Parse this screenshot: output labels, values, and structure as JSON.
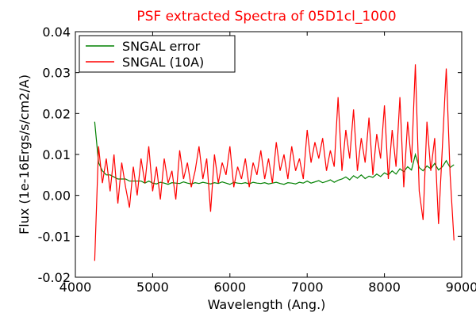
{
  "chart_data": {
    "type": "line",
    "title": "PSF extracted Spectra of 05D1cl_1000",
    "x_label": "Wavelength (Ang.)",
    "y_label": "Flux (1e-16Ergs/s/cm2/A)",
    "xlim": [
      4000,
      9000
    ],
    "ylim": [
      -0.02,
      0.04
    ],
    "xticks": [
      4000,
      5000,
      6000,
      7000,
      8000,
      9000
    ],
    "yticks": [
      -0.02,
      -0.01,
      {
        "value": 0,
        "label": "0.00"
      },
      0.01,
      0.02,
      0.03,
      0.04
    ],
    "legend": "upper left",
    "x": [
      4250,
      4300,
      4350,
      4400,
      4450,
      4500,
      4550,
      4600,
      4650,
      4700,
      4750,
      4800,
      4850,
      4900,
      4950,
      5000,
      5050,
      5100,
      5150,
      5200,
      5250,
      5300,
      5350,
      5400,
      5450,
      5500,
      5550,
      5600,
      5650,
      5700,
      5750,
      5800,
      5850,
      5900,
      5950,
      6000,
      6050,
      6100,
      6150,
      6200,
      6250,
      6300,
      6350,
      6400,
      6450,
      6500,
      6550,
      6600,
      6650,
      6700,
      6750,
      6800,
      6850,
      6900,
      6950,
      7000,
      7050,
      7100,
      7150,
      7200,
      7250,
      7300,
      7350,
      7400,
      7450,
      7500,
      7550,
      7600,
      7650,
      7700,
      7750,
      7800,
      7850,
      7900,
      7950,
      8000,
      8050,
      8100,
      8150,
      8200,
      8250,
      8300,
      8350,
      8400,
      8450,
      8500,
      8550,
      8600,
      8650,
      8700,
      8750,
      8800,
      8850,
      8900
    ],
    "series": [
      {
        "name": "SNGAL error",
        "color": "#008000",
        "values": [
          0.018,
          0.008,
          0.006,
          0.005,
          0.005,
          0.0045,
          0.004,
          0.004,
          0.004,
          0.0035,
          0.0035,
          0.0035,
          0.0035,
          0.003,
          0.0035,
          0.003,
          0.0028,
          0.0032,
          0.003,
          0.0027,
          0.0031,
          0.003,
          0.0029,
          0.0033,
          0.003,
          0.0028,
          0.0031,
          0.0029,
          0.0032,
          0.003,
          0.0028,
          0.0031,
          0.0029,
          0.0033,
          0.003,
          0.0027,
          0.0032,
          0.003,
          0.0029,
          0.0031,
          0.0028,
          0.0032,
          0.003,
          0.0029,
          0.0031,
          0.0028,
          0.003,
          0.0032,
          0.0029,
          0.0027,
          0.0031,
          0.003,
          0.0028,
          0.0032,
          0.003,
          0.0035,
          0.003,
          0.0033,
          0.0036,
          0.0031,
          0.0034,
          0.0038,
          0.0032,
          0.0037,
          0.004,
          0.0045,
          0.0038,
          0.0048,
          0.0042,
          0.005,
          0.0041,
          0.0047,
          0.0044,
          0.0052,
          0.0046,
          0.0055,
          0.005,
          0.006,
          0.0052,
          0.0065,
          0.0058,
          0.007,
          0.0062,
          0.01,
          0.0068,
          0.006,
          0.0072,
          0.0065,
          0.0078,
          0.0062,
          0.007,
          0.0085,
          0.0068,
          0.0075
        ]
      },
      {
        "name": "SNGAL (10A)",
        "color": "#ff0000",
        "values": [
          -0.016,
          0.012,
          0.003,
          0.009,
          0.001,
          0.01,
          -0.002,
          0.008,
          0.002,
          -0.003,
          0.007,
          0.0,
          0.009,
          0.003,
          0.012,
          0.001,
          0.007,
          -0.001,
          0.009,
          0.003,
          0.006,
          -0.001,
          0.011,
          0.004,
          0.008,
          0.002,
          0.006,
          0.012,
          0.004,
          0.009,
          -0.004,
          0.01,
          0.003,
          0.008,
          0.005,
          0.012,
          0.002,
          0.007,
          0.004,
          0.009,
          0.002,
          0.008,
          0.005,
          0.011,
          0.004,
          0.009,
          0.003,
          0.013,
          0.006,
          0.01,
          0.004,
          0.012,
          0.006,
          0.009,
          0.004,
          0.016,
          0.008,
          0.013,
          0.009,
          0.014,
          0.006,
          0.011,
          0.007,
          0.024,
          0.006,
          0.016,
          0.009,
          0.021,
          0.006,
          0.014,
          0.008,
          0.019,
          0.005,
          0.015,
          0.009,
          0.022,
          0.004,
          0.016,
          0.007,
          0.024,
          0.002,
          0.018,
          0.008,
          0.032,
          0.001,
          -0.006,
          0.018,
          0.006,
          0.014,
          -0.007,
          0.012,
          0.031,
          0.005,
          -0.011
        ]
      }
    ]
  }
}
